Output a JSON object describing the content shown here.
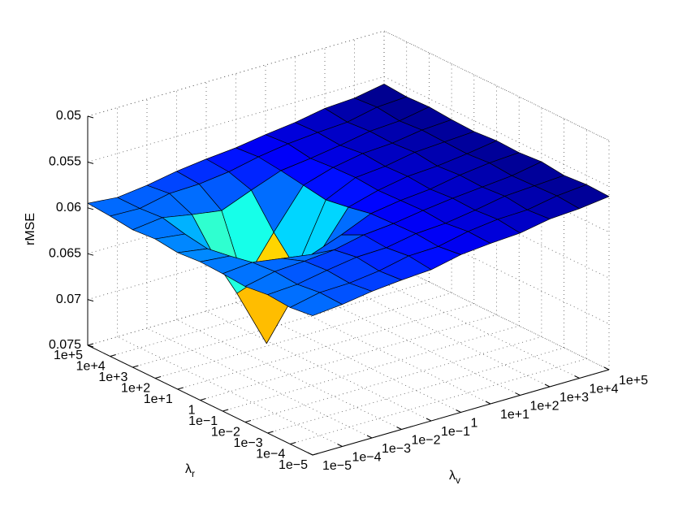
{
  "chart_data": {
    "type": "surface",
    "zlabel": "rMSE",
    "xlabel": {
      "symbol": "λ",
      "subscript": "v"
    },
    "ylabel": {
      "symbol": "λ",
      "subscript": "r"
    },
    "x": [
      1e-05,
      0.0001,
      0.001,
      0.01,
      0.1,
      1,
      10.0,
      100.0,
      1000.0,
      10000.0,
      100000.0
    ],
    "y": [
      1e-05,
      0.0001,
      0.001,
      0.01,
      0.1,
      1,
      10.0,
      100.0,
      1000.0,
      10000.0,
      100000.0
    ],
    "z": [
      [
        0.0598,
        0.0595,
        0.059,
        0.0587,
        0.0585,
        0.0578,
        0.0575,
        0.0573,
        0.0567,
        0.0565,
        0.0561
      ],
      [
        0.0601,
        0.0594,
        0.0593,
        0.0589,
        0.0582,
        0.0581,
        0.0574,
        0.057,
        0.0569,
        0.0563,
        0.056
      ],
      [
        0.0599,
        0.0597,
        0.0591,
        0.0586,
        0.0585,
        0.0579,
        0.0577,
        0.0572,
        0.0566,
        0.0564,
        0.0562
      ],
      [
        0.0602,
        0.0595,
        0.0593,
        0.059,
        0.0583,
        0.058,
        0.0575,
        0.0571,
        0.0568,
        0.0565,
        0.0559
      ],
      [
        0.06,
        0.0597,
        0.0602,
        0.0607,
        0.0595,
        0.0581,
        0.0576,
        0.0573,
        0.0567,
        0.0563,
        0.0561
      ],
      [
        0.0599,
        0.0602,
        0.0636,
        0.0673,
        0.0628,
        0.0586,
        0.0577,
        0.0571,
        0.0569,
        0.0565,
        0.056
      ],
      [
        0.0601,
        0.0606,
        0.0664,
        0.0728,
        0.0656,
        0.059,
        0.0575,
        0.0572,
        0.0566,
        0.0564,
        0.0562
      ],
      [
        0.0598,
        0.0602,
        0.0636,
        0.0673,
        0.0628,
        0.0586,
        0.0576,
        0.057,
        0.0568,
        0.0563,
        0.0561
      ],
      [
        0.06,
        0.0596,
        0.0602,
        0.0607,
        0.0594,
        0.0582,
        0.0578,
        0.0573,
        0.0567,
        0.0565,
        0.0559
      ],
      [
        0.0597,
        0.0598,
        0.0591,
        0.059,
        0.0586,
        0.0579,
        0.0574,
        0.0571,
        0.0569,
        0.0562,
        0.056
      ],
      [
        0.0595,
        0.0598,
        0.0594,
        0.0588,
        0.0584,
        0.0581,
        0.0576,
        0.0572,
        0.0566,
        0.0564,
        0.0558
      ]
    ],
    "xlim": [
      1e-05,
      100000.0
    ],
    "ylim": [
      1e-05,
      100000.0
    ],
    "zlim": [
      0.05,
      0.075
    ],
    "zdir": "reverse",
    "xscale": "log",
    "yscale": "log",
    "xticks": [
      {
        "value": 1e-05,
        "label": "1e−5"
      },
      {
        "value": 0.0001,
        "label": "1e−4"
      },
      {
        "value": 0.001,
        "label": "1e−3"
      },
      {
        "value": 0.01,
        "label": "1e−2"
      },
      {
        "value": 0.1,
        "label": "1e−1"
      },
      1,
      {
        "value": 10.0,
        "label": "1e+1"
      },
      {
        "value": 100.0,
        "label": "1e+2"
      },
      {
        "value": 1000.0,
        "label": "1e+3"
      },
      {
        "value": 10000.0,
        "label": "1e+4"
      },
      {
        "value": 100000.0,
        "label": "1e+5"
      }
    ],
    "yticks": [
      {
        "value": 1e-05,
        "label": "1e−5"
      },
      {
        "value": 0.0001,
        "label": "1e−4"
      },
      {
        "value": 0.001,
        "label": "1e−3"
      },
      {
        "value": 0.01,
        "label": "1e−2"
      },
      {
        "value": 0.1,
        "label": "1e−1"
      },
      1,
      {
        "value": 10.0,
        "label": "1e+1"
      },
      {
        "value": 100.0,
        "label": "1e+2"
      },
      {
        "value": 1000.0,
        "label": "1e+3"
      },
      {
        "value": 10000.0,
        "label": "1e+4"
      },
      {
        "value": 100000.0,
        "label": "1e+5"
      }
    ],
    "zticks": [
      0.05,
      0.055,
      0.06,
      0.065,
      0.07,
      0.075
    ],
    "grid": true,
    "colormap": "jet",
    "edgecolor": "#000000"
  }
}
